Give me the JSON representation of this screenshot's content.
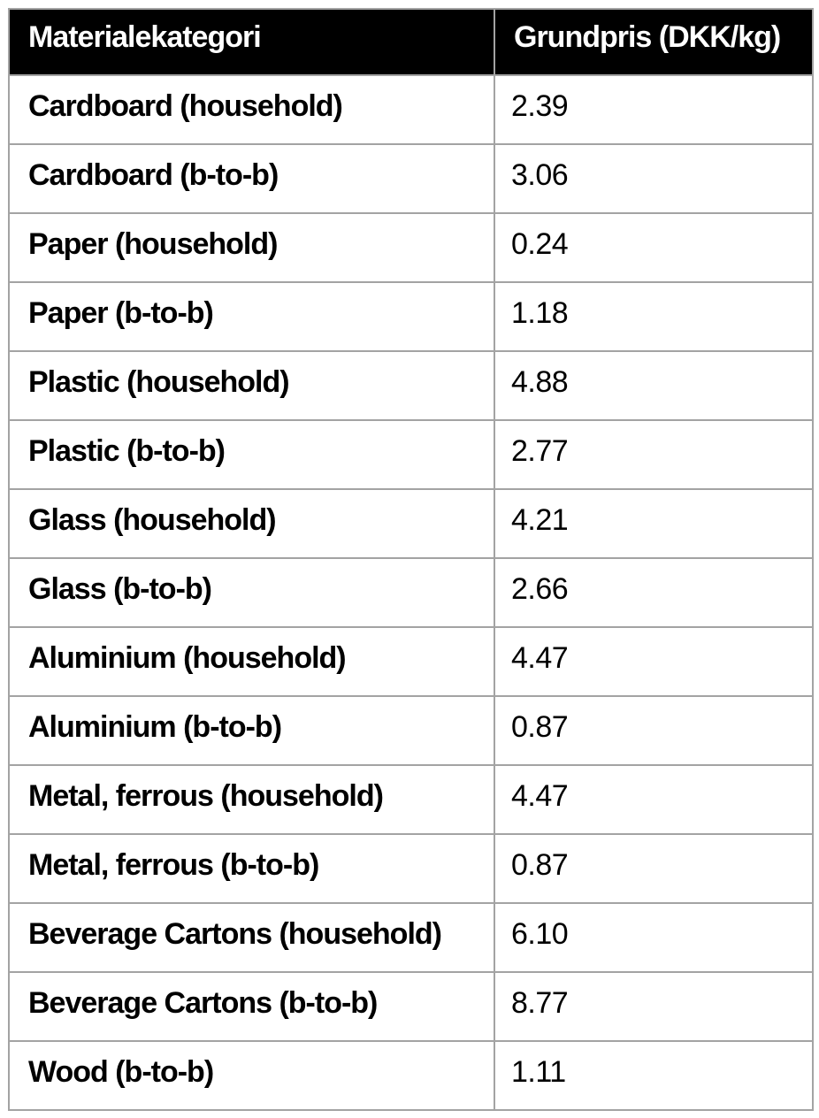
{
  "table": {
    "headers": [
      {
        "label": "Materialekategori"
      },
      {
        "label": "Grundpris (DKK/kg)"
      }
    ],
    "rows": [
      {
        "category": "Cardboard (household)",
        "price": "2.39"
      },
      {
        "category": "Cardboard (b-to-b)",
        "price": "3.06"
      },
      {
        "category": "Paper (household)",
        "price": "0.24"
      },
      {
        "category": "Paper (b-to-b)",
        "price": "1.18"
      },
      {
        "category": "Plastic (household)",
        "price": "4.88"
      },
      {
        "category": "Plastic (b-to-b)",
        "price": "2.77"
      },
      {
        "category": "Glass (household)",
        "price": "4.21"
      },
      {
        "category": "Glass (b-to-b)",
        "price": "2.66"
      },
      {
        "category": "Aluminium (household)",
        "price": "4.47"
      },
      {
        "category": "Aluminium (b-to-b)",
        "price": "0.87"
      },
      {
        "category": "Metal, ferrous (household)",
        "price": "4.47"
      },
      {
        "category": "Metal, ferrous (b-to-b)",
        "price": "0.87"
      },
      {
        "category": "Beverage Cartons (household)",
        "price": "6.10"
      },
      {
        "category": "Beverage Cartons (b-to-b)",
        "price": "8.77"
      },
      {
        "category": "Wood (b-to-b)",
        "price": "1.11"
      }
    ],
    "colors": {
      "header_bg": "#000000",
      "header_text": "#ffffff",
      "grid": "#a3a3a3",
      "body_text": "#000000"
    }
  }
}
